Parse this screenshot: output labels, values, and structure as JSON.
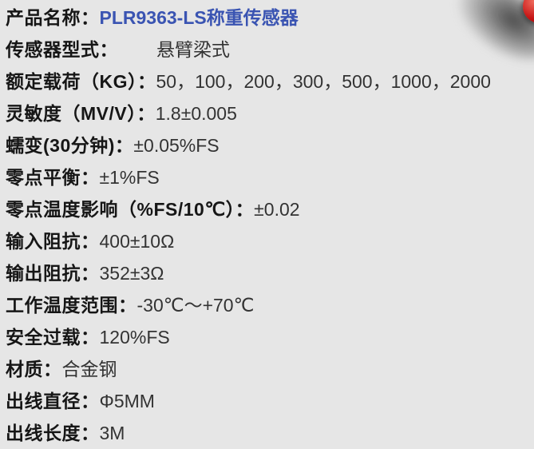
{
  "page": {
    "type": "product-specification-sheet",
    "product_name": "PLR9363-LS称重传感器"
  },
  "colors": {
    "background": "#e6e6e6",
    "label_text": "#161616",
    "value_text": "#333333",
    "accent_blue": "#3a54b2",
    "corner_red_object": "#c41212",
    "corner_shadow_gray": "#4a4a4a"
  },
  "decoration": {
    "corner_object": "red-ball-photo-corner-cutoff"
  },
  "specs": [
    {
      "label": "产品名称：",
      "value": "PLR9363-LS称重传感器"
    },
    {
      "label": "传感器型式：",
      "value": "悬臂梁式"
    },
    {
      "label": "额定载荷（KG）：",
      "value": "50，100，200，300，500，1000，2000"
    },
    {
      "label": "灵敏度（MV/V）：",
      "value": "1.8±0.005"
    },
    {
      "label": "蠕变(30分钟)：",
      "value": "±0.05%FS"
    },
    {
      "label": "零点平衡：",
      "value": "±1%FS"
    },
    {
      "label": "零点温度影响（%FS/10℃）：",
      "value": "±0.02"
    },
    {
      "label": "输入阻抗：",
      "value": "400±10Ω"
    },
    {
      "label": "输出阻抗：",
      "value": "352±3Ω"
    },
    {
      "label": "工作温度范围：",
      "value": "-30℃～+70℃"
    },
    {
      "label": "安全过载：",
      "value": "120%FS"
    },
    {
      "label": "材质：",
      "value": "合金钢"
    },
    {
      "label": "出线直径：",
      "value": "Φ5MM"
    },
    {
      "label": "出线长度：",
      "value": "3M"
    }
  ]
}
